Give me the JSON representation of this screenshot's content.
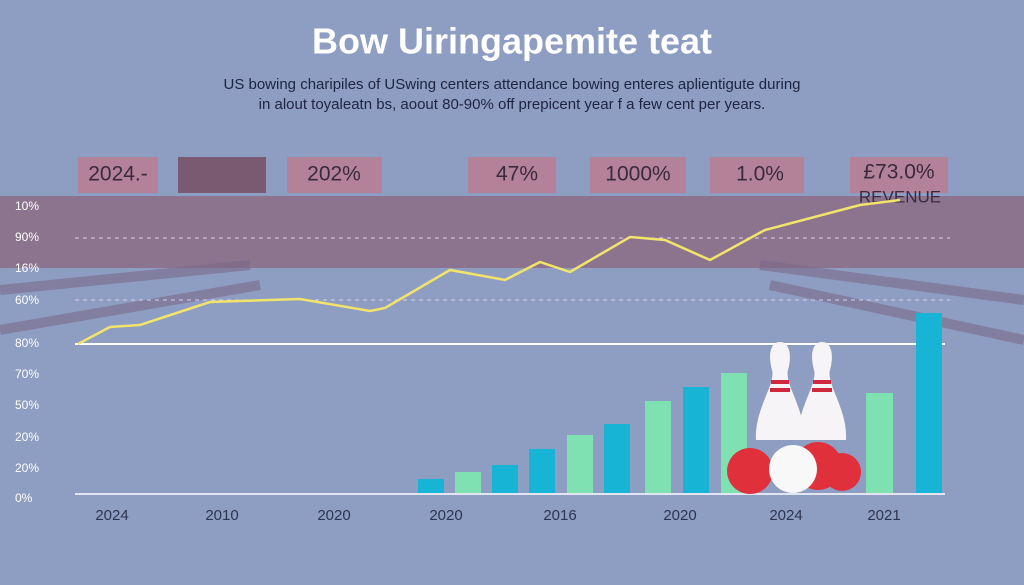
{
  "header": {
    "title": "Bow Uiringapemite teat",
    "subtitle": [
      "US bowing charipiles of USwing centers attendance bowing enteres aplientigute during",
      "in alout toyaleatn bs, aoout 80-90% off prepicent year f a few cent per years."
    ]
  },
  "top_boxes": [
    "2024.-",
    "202%",
    "47%",
    "1000%",
    "1.0%",
    "£73.0%"
  ],
  "revenue_label": "REVENUE",
  "y_labels": [
    "10%",
    "90%",
    "16%",
    "60%",
    "80%",
    "70%",
    "50%",
    "20%",
    "20%",
    "0%"
  ],
  "x_labels": [
    "2024",
    "2010",
    "2020",
    "2020",
    "2016",
    "2020",
    "2024",
    "2021"
  ]
}
